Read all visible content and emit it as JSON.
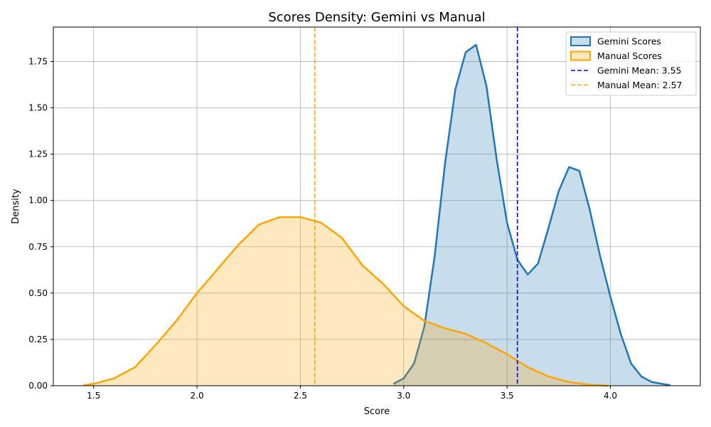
{
  "chart_data": {
    "type": "area",
    "title": "Scores Density: Gemini vs Manual",
    "xlabel": "Score",
    "ylabel": "Density",
    "xlim": [
      1.305,
      4.435
    ],
    "ylim": [
      0.0,
      1.936
    ],
    "xticks": [
      1.5,
      2.0,
      2.5,
      3.0,
      3.5,
      4.0
    ],
    "xtick_labels": [
      "1.5",
      "2.0",
      "2.5",
      "3.0",
      "3.5",
      "4.0"
    ],
    "yticks": [
      0.0,
      0.25,
      0.5,
      0.75,
      1.0,
      1.25,
      1.5,
      1.75
    ],
    "ytick_labels": [
      "0.00",
      "0.25",
      "0.50",
      "0.75",
      "1.00",
      "1.25",
      "1.50",
      "1.75"
    ],
    "grid": true,
    "legend_position": "top-right",
    "series": [
      {
        "name": "Gemini Scores",
        "color": "#1f77b4",
        "fill": "#1f77b4",
        "fill_opacity": 0.25,
        "x": [
          2.95,
          3.0,
          3.05,
          3.1,
          3.15,
          3.2,
          3.25,
          3.3,
          3.35,
          3.4,
          3.45,
          3.5,
          3.55,
          3.6,
          3.65,
          3.7,
          3.75,
          3.8,
          3.85,
          3.9,
          3.95,
          4.0,
          4.05,
          4.1,
          4.15,
          4.2,
          4.25,
          4.29
        ],
        "y": [
          0.01,
          0.04,
          0.12,
          0.32,
          0.7,
          1.2,
          1.6,
          1.8,
          1.84,
          1.62,
          1.22,
          0.88,
          0.68,
          0.6,
          0.66,
          0.85,
          1.05,
          1.18,
          1.16,
          0.95,
          0.7,
          0.48,
          0.28,
          0.12,
          0.05,
          0.02,
          0.01,
          0.003
        ]
      },
      {
        "name": "Manual Scores",
        "color": "#ffa500",
        "fill": "#ffa500",
        "fill_opacity": 0.25,
        "x": [
          1.45,
          1.5,
          1.6,
          1.7,
          1.8,
          1.9,
          2.0,
          2.1,
          2.2,
          2.3,
          2.4,
          2.5,
          2.6,
          2.7,
          2.8,
          2.9,
          3.0,
          3.1,
          3.2,
          3.3,
          3.4,
          3.5,
          3.6,
          3.7,
          3.8,
          3.9,
          3.99
        ],
        "y": [
          0.003,
          0.01,
          0.04,
          0.1,
          0.22,
          0.35,
          0.5,
          0.63,
          0.76,
          0.87,
          0.91,
          0.91,
          0.88,
          0.8,
          0.65,
          0.55,
          0.43,
          0.35,
          0.31,
          0.28,
          0.23,
          0.17,
          0.1,
          0.05,
          0.02,
          0.005,
          0.0
        ]
      }
    ],
    "reference_lines": [
      {
        "name": "Gemini Mean: 3.55",
        "x": 3.55,
        "color": "#0000ff",
        "style": "dashed"
      },
      {
        "name": "Manual Mean: 2.57",
        "x": 2.57,
        "color": "#ffa500",
        "style": "dashed"
      }
    ]
  }
}
